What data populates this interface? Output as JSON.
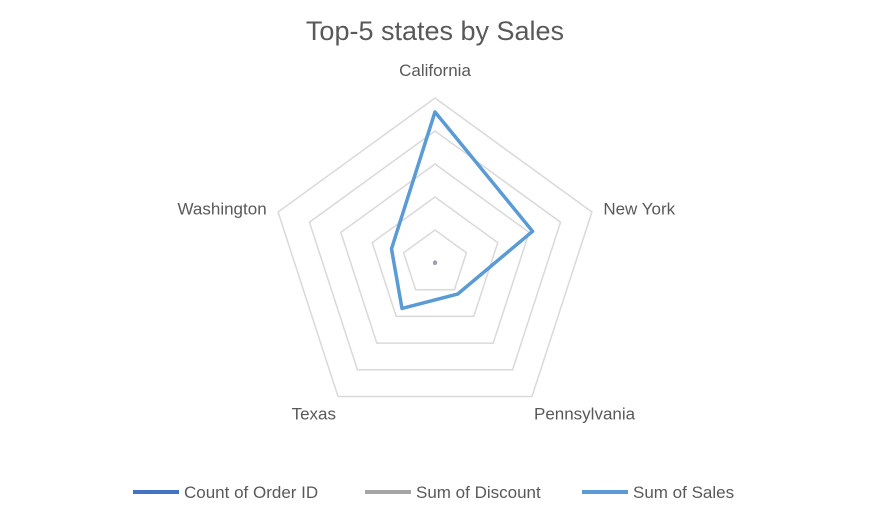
{
  "chart_data": {
    "type": "radar",
    "title": "Top-5 states by Sales",
    "categories": [
      "California",
      "New York",
      "Pennsylvania",
      "Texas",
      "Washington"
    ],
    "series": [
      {
        "name": "Count of Order ID",
        "color": "#4472C4",
        "values": [
          2001,
          1128,
          587,
          985,
          506
        ]
      },
      {
        "name": "Sum of Discount",
        "color": "#A5A5A5",
        "values": [
          145.6,
          62.4,
          192.3,
          364.6,
          65.4
        ]
      },
      {
        "name": "Sum of Sales",
        "color": "#5B9BD5",
        "values": [
          457688,
          310876,
          116512,
          170188,
          138641
        ]
      }
    ],
    "rlim": [
      0,
      500000
    ],
    "grid_rings": 5,
    "legend_position": "bottom"
  }
}
